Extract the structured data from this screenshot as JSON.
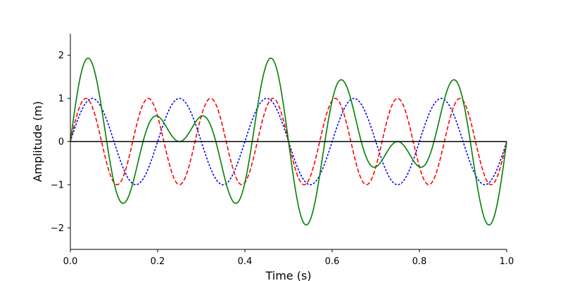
{
  "chart_data": {
    "type": "line",
    "title": "",
    "xlabel": "Time (s)",
    "ylabel": "Amplitude (m)",
    "xlim": [
      0,
      1
    ],
    "ylim": [
      -2.5,
      2.5
    ],
    "x_ticks": [
      0.0,
      0.2,
      0.4,
      0.6,
      0.8,
      1.0
    ],
    "x_tick_labels": [
      "0.0",
      "0.2",
      "0.4",
      "0.6",
      "0.8",
      "1.0"
    ],
    "y_ticks": [
      -2,
      -1,
      0,
      1,
      2
    ],
    "y_tick_labels": [
      "−2",
      "−1",
      "0",
      "1",
      "2"
    ],
    "grid": false,
    "legend": "none",
    "zero_line": {
      "y": 0,
      "color": "#000000"
    },
    "series": [
      {
        "color": "#0000ff",
        "style": "dotted",
        "amplitude": 1,
        "frequency_hz": 5,
        "x": [
          0,
          0.05,
          0.1,
          0.15,
          0.2,
          0.25,
          0.3,
          0.35,
          0.4,
          0.45,
          0.5,
          0.55,
          0.6,
          0.65,
          0.7,
          0.75,
          0.8,
          0.85,
          0.9,
          0.95,
          1.0
        ],
        "y": [
          0,
          1,
          0,
          -1,
          0,
          1,
          0,
          -1,
          0,
          1,
          0,
          -1,
          0,
          1,
          0,
          -1,
          0,
          1,
          0,
          -1,
          0
        ]
      },
      {
        "color": "#ff0000",
        "style": "dashed",
        "amplitude": 1,
        "frequency_hz": 7,
        "x": [
          0,
          0.0357,
          0.0714,
          0.1071,
          0.1429,
          0.1786,
          0.2143,
          0.25,
          0.2857,
          0.3214,
          0.3571,
          0.3929,
          0.4286,
          0.4643,
          0.5,
          0.5357,
          0.5714,
          0.6071,
          0.6429,
          0.6786,
          0.7143,
          0.75,
          0.7857,
          0.8214,
          0.8571,
          0.8929,
          0.9286,
          0.9643,
          1.0
        ],
        "y": [
          0,
          1,
          0,
          -1,
          0,
          1,
          0,
          -1,
          0,
          1,
          0,
          -1,
          0,
          1,
          0,
          -1,
          0,
          1,
          0,
          -1,
          0,
          1,
          0,
          -1,
          0,
          1,
          0,
          -1,
          0
        ]
      },
      {
        "color": "#008000",
        "style": "solid",
        "components": "sum of the dotted and dashed waves",
        "x": [
          0,
          0.04,
          0.12,
          0.2,
          0.25,
          0.3,
          0.38,
          0.46,
          0.54,
          0.62,
          0.7,
          0.75,
          0.8,
          0.88,
          0.96,
          1.0
        ],
        "y": [
          0,
          1.92,
          -1.42,
          0.59,
          0,
          0.59,
          -1.42,
          1.92,
          -1.92,
          1.42,
          -0.59,
          0,
          -0.59,
          1.42,
          -1.92,
          0
        ]
      }
    ]
  }
}
